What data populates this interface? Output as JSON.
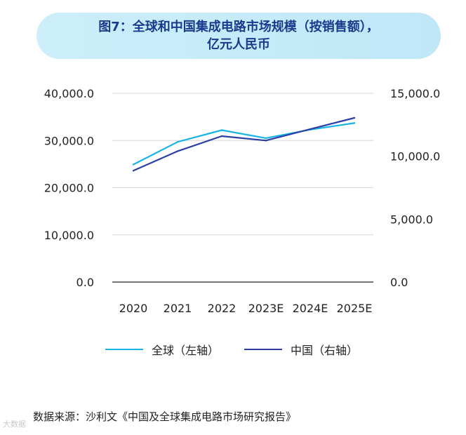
{
  "title": {
    "line1": "图7：全球和中国集成电路市场规模（按销售额），",
    "line2": "亿元人民币"
  },
  "source": "数据来源：沙利文《中国及全球集成电路市场研究报告》",
  "watermark": "大数据",
  "colors": {
    "global": "#1ab4e4",
    "china": "#2d3fa6",
    "title_bg": "#c6eaf8",
    "title_text": "#1a3b8c",
    "grid": "#d6d6d6"
  },
  "chart_data": {
    "type": "line",
    "categories": [
      "2020",
      "2021",
      "2022",
      "2023E",
      "2024E",
      "2025E"
    ],
    "left_axis": {
      "ylim": [
        0,
        40000
      ],
      "ticks": [
        "0.0",
        "10,000.0",
        "20,000.0",
        "30,000.0",
        "40,000.0"
      ]
    },
    "right_axis": {
      "ylim": [
        0,
        15000
      ],
      "ticks": [
        "0.0",
        "5,000.0",
        "10,000.0",
        "15,000.0"
      ]
    },
    "series": [
      {
        "name": "全球（左轴）",
        "axis": "left",
        "color": "#1ab4e4",
        "values": [
          24900,
          29700,
          32200,
          30500,
          32300,
          33700
        ]
      },
      {
        "name": "中国（右轴）",
        "axis": "right",
        "color": "#2d3fa6",
        "values": [
          8850,
          10400,
          11600,
          11250,
          12150,
          13050
        ]
      }
    ],
    "legend_position": "bottom",
    "grid": true
  }
}
